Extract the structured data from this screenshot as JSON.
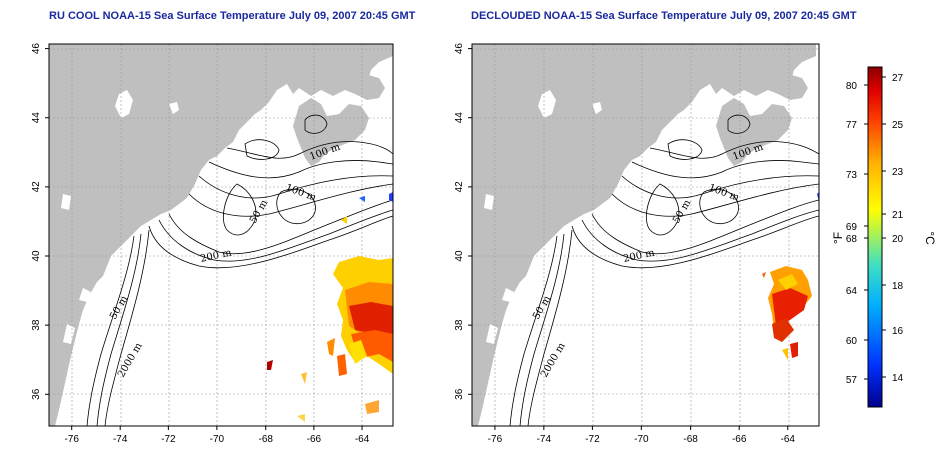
{
  "titles": {
    "left": "RU COOL NOAA-15 Sea Surface Temperature July 09, 2007 20:45 GMT",
    "right": "DECLOUDED NOAA-15 Sea Surface Temperature July 09, 2007 20:45 GMT"
  },
  "axes": {
    "lon_ticks": [
      "-76",
      "-74",
      "-72",
      "-70",
      "-68",
      "-66",
      "-64"
    ],
    "lat_ticks": [
      "46",
      "44",
      "42",
      "40",
      "38",
      "36"
    ]
  },
  "contour_labels": [
    "100 m",
    "100 m",
    "50 m",
    "200 m",
    "50 m",
    "2000 m"
  ],
  "colorbar": {
    "fahrenheit_unit": "°F",
    "celsius_unit": "°C",
    "fahrenheit_ticks": [
      "80",
      "77",
      "73",
      "69",
      "68",
      "64",
      "60",
      "57"
    ],
    "celsius_ticks": [
      "27",
      "25",
      "23",
      "21",
      "20",
      "18",
      "16",
      "14"
    ],
    "colors": [
      "#00008b",
      "#0040ff",
      "#00b0ff",
      "#40e0c0",
      "#a0f060",
      "#ffff00",
      "#ffb000",
      "#ff5000",
      "#e00000",
      "#8b0000"
    ]
  },
  "colors": {
    "land": "#bfbfbf",
    "title": "#1a2a9e"
  }
}
